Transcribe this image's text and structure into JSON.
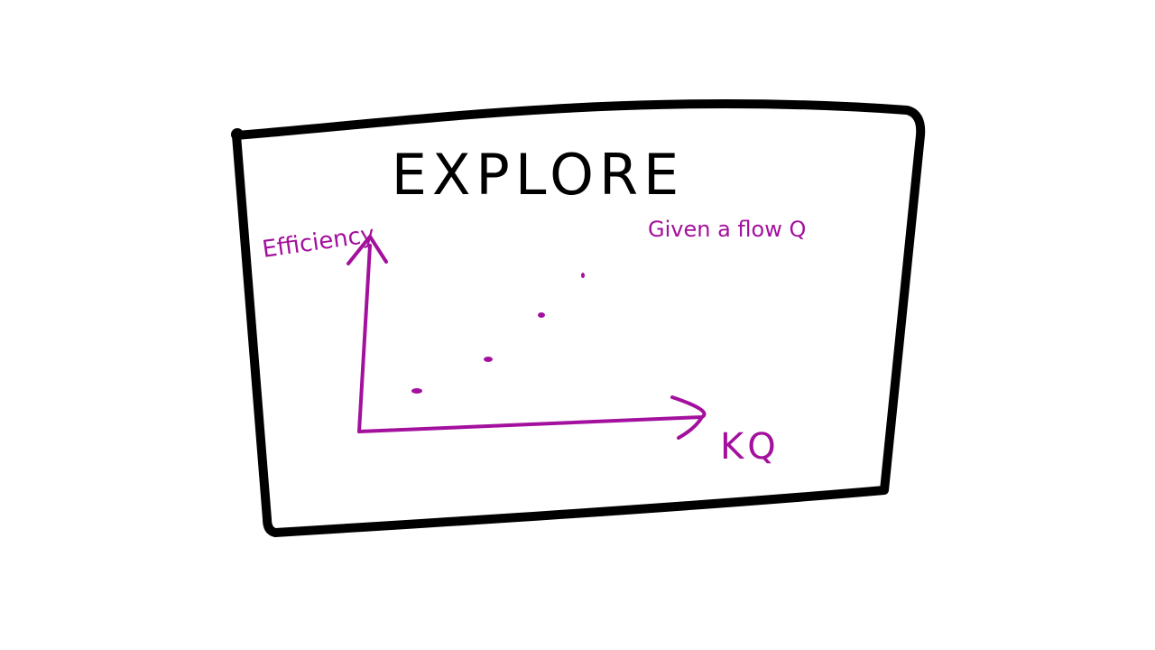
{
  "title": "EXPLORE",
  "y_axis_label": "Efficiency",
  "x_axis_label": "KQ",
  "note": "Given a flow Q"
}
